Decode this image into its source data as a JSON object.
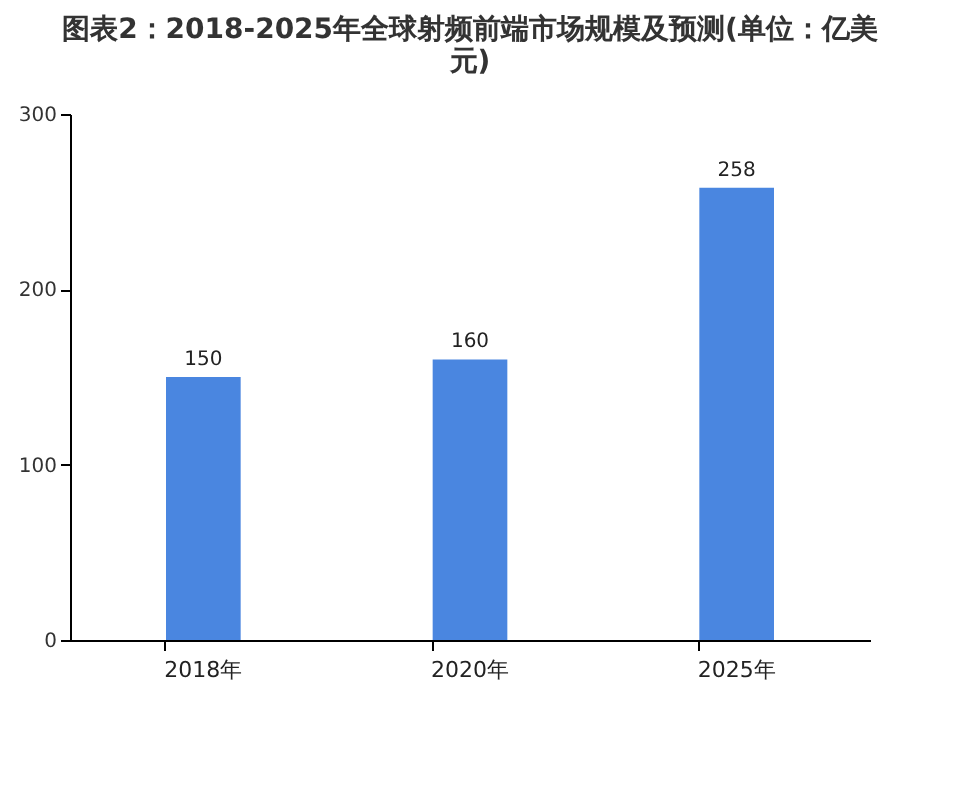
{
  "chart_data": {
    "type": "bar",
    "title": "图表2：2018-2025年全球射频前端市场规模及预测(单位：亿美元)",
    "categories": [
      "2018年",
      "2020年",
      "2025年"
    ],
    "values": [
      150,
      160,
      258
    ],
    "color": "#4a86e0",
    "ylim": [
      0,
      300
    ],
    "yticks": [
      0,
      100,
      200,
      300
    ],
    "grid": false,
    "data_labels": true
  }
}
